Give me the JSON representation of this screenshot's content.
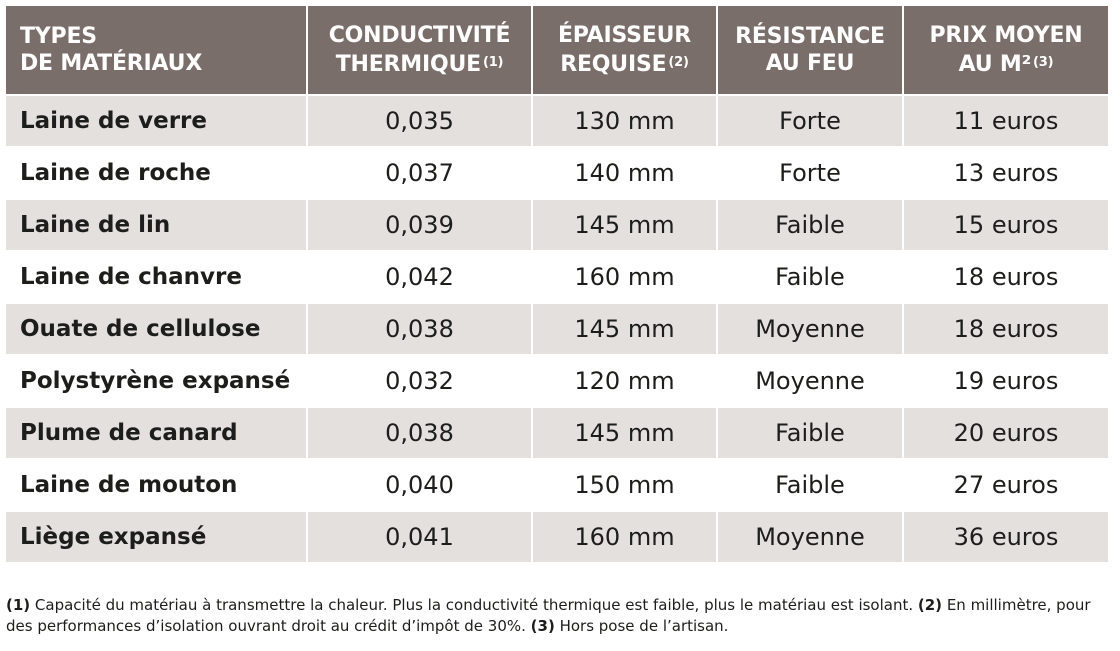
{
  "headers": {
    "types": [
      "TYPES",
      "DE MATÉRIAUX"
    ],
    "conductivite": [
      "CONDUCTIVITÉ",
      "THERMIQUE"
    ],
    "conductivite_note": "(1)",
    "epaisseur": [
      "ÉPAISSEUR",
      "REQUISE"
    ],
    "epaisseur_note": "(2)",
    "resistance": [
      "RÉSISTANCE",
      "AU FEU"
    ],
    "prix": [
      "PRIX MOYEN",
      "AU M²"
    ],
    "prix_note": "(3)"
  },
  "rows": [
    {
      "name": "Laine de verre",
      "conductivite": "0,035",
      "epaisseur": "130 mm",
      "resistance": "Forte",
      "prix": "11 euros"
    },
    {
      "name": "Laine de roche",
      "conductivite": "0,037",
      "epaisseur": "140 mm",
      "resistance": "Forte",
      "prix": "13 euros"
    },
    {
      "name": "Laine de lin",
      "conductivite": "0,039",
      "epaisseur": "145 mm",
      "resistance": "Faible",
      "prix": "15 euros"
    },
    {
      "name": "Laine de chanvre",
      "conductivite": "0,042",
      "epaisseur": "160 mm",
      "resistance": "Faible",
      "prix": "18 euros"
    },
    {
      "name": "Ouate de cellulose",
      "conductivite": "0,038",
      "epaisseur": "145 mm",
      "resistance": "Moyenne",
      "prix": "18 euros"
    },
    {
      "name": "Polystyrène expansé",
      "conductivite": "0,032",
      "epaisseur": "120 mm",
      "resistance": "Moyenne",
      "prix": "19 euros"
    },
    {
      "name": "Plume de canard",
      "conductivite": "0,038",
      "epaisseur": "145 mm",
      "resistance": "Faible",
      "prix": "20 euros"
    },
    {
      "name": "Laine de mouton",
      "conductivite": "0,040",
      "epaisseur": "150 mm",
      "resistance": "Faible",
      "prix": "27 euros"
    },
    {
      "name": "Liège expansé",
      "conductivite": "0,041",
      "epaisseur": "160 mm",
      "resistance": "Moyenne",
      "prix": "36 euros"
    }
  ],
  "footnotes": [
    {
      "marker": "(1)",
      "text": " Capacité du matériau à transmettre la chaleur. Plus la conductivité thermique est faible, plus le matériau est isolant. "
    },
    {
      "marker": "(2)",
      "text": " En milli­mètre, pour des performances d’isolation ouvrant droit au crédit d’impôt de 30%. "
    },
    {
      "marker": "(3)",
      "text": " Hors pose de l’artisan."
    }
  ],
  "colors": {
    "header_bg": "#7a6e6a",
    "odd_row_bg": "#e4e0de",
    "even_row_bg": "#ffffff",
    "text": "#1d1d1b"
  }
}
